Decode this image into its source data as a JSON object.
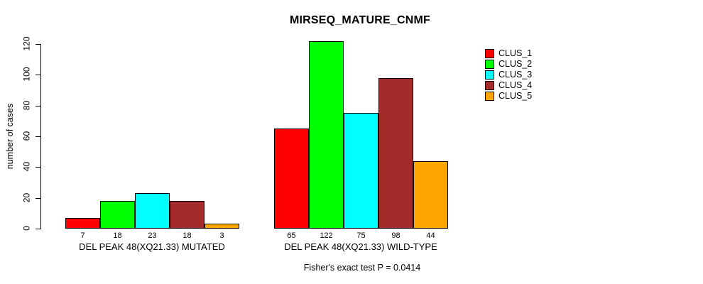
{
  "chart_data": {
    "type": "bar",
    "title": "MIRSEQ_MATURE_CNMF",
    "ylabel": "number of cases",
    "ylim": [
      0,
      120
    ],
    "yticks": [
      0,
      20,
      40,
      60,
      80,
      100,
      120
    ],
    "grid": false,
    "legend_position": "right",
    "legend": [
      {
        "label": "CLUS_1",
        "color": "#FF0000"
      },
      {
        "label": "CLUS_2",
        "color": "#00FF00"
      },
      {
        "label": "CLUS_3",
        "color": "#00FFFF"
      },
      {
        "label": "CLUS_4",
        "color": "#A52A2A"
      },
      {
        "label": "CLUS_5",
        "color": "#FFA500"
      }
    ],
    "groups": [
      {
        "label": "DEL PEAK 48(XQ21.33) MUTATED",
        "values": [
          7,
          18,
          23,
          18,
          3
        ]
      },
      {
        "label": "DEL PEAK 48(XQ21.33) WILD-TYPE",
        "values": [
          65,
          122,
          75,
          98,
          44
        ]
      }
    ],
    "bar_value_labels": true,
    "footnote": "Fisher's exact test P = 0.0414"
  }
}
